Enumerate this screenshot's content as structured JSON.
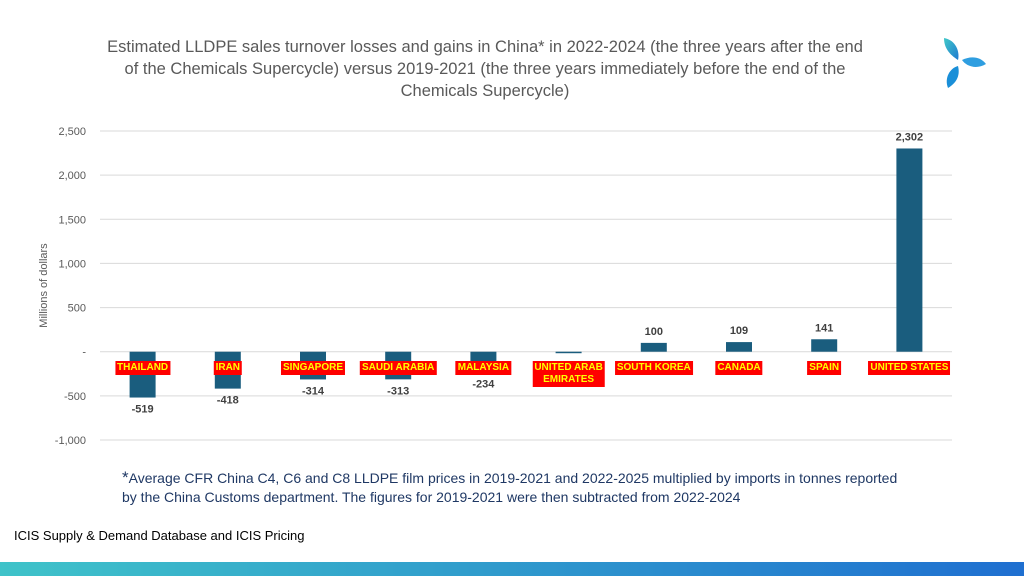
{
  "title": "Estimated LLDPE sales turnover losses and gains in China* in 2022-2024 (the three years after the end of the Chemicals Supercycle) versus 2019-2021 (the three years immediately before the end of the Chemicals Supercycle)",
  "footnote": {
    "star": "*",
    "text": "Average CFR China C4, C6 and C8 LLDPE film prices in 2019-2021 and 2022-2025 multiplied by imports in tonnes reported by the China Customs department. The figures for 2019-2021 were then subtracted from 2022-2024"
  },
  "source": "ICIS Supply & Demand Database and ICIS Pricing",
  "colors": {
    "bar": "#1a5d7e",
    "label_bg": "#ff0000",
    "label_text": "#ffff00",
    "gradient_start": "#3fc3c9",
    "gradient_end": "#1f6fd0"
  },
  "logo": {
    "icon": "icis-logo-icon"
  },
  "chart_data": {
    "type": "bar",
    "ylabel": "Millions of dollars",
    "ylim": [
      -1000,
      2500
    ],
    "yticks": [
      {
        "value": 2500,
        "label": "2,500"
      },
      {
        "value": 2000,
        "label": "2,000"
      },
      {
        "value": 1500,
        "label": "1,500"
      },
      {
        "value": 1000,
        "label": "1,000"
      },
      {
        "value": 500,
        "label": "500"
      },
      {
        "value": 0,
        "label": "-"
      },
      {
        "value": -500,
        "label": "-500"
      },
      {
        "value": -1000,
        "label": "-1,000"
      }
    ],
    "grid": true,
    "categories": [
      "THAILAND",
      "IRAN",
      "SINGAPORE",
      "SAUDI ARABIA",
      "MALAYSIA",
      "UNITED ARAB EMIRATES",
      "SOUTH KOREA",
      "CANADA",
      "SPAIN",
      "UNITED STATES"
    ],
    "category_lines": [
      [
        "THAILAND"
      ],
      [
        "IRAN"
      ],
      [
        "SINGAPORE"
      ],
      [
        "SAUDI ARABIA"
      ],
      [
        "MALAYSIA"
      ],
      [
        "UNITED ARAB",
        "EMIRATES"
      ],
      [
        "SOUTH KOREA"
      ],
      [
        "CANADA"
      ],
      [
        "SPAIN"
      ],
      [
        "UNITED STATES"
      ]
    ],
    "values": [
      -519,
      -418,
      -314,
      -313,
      -234,
      -13,
      100,
      109,
      141,
      2302
    ],
    "data_labels": [
      "-519",
      "-418",
      "-314",
      "-313",
      "-234",
      "",
      "100",
      "109",
      "141",
      "2,302"
    ]
  }
}
